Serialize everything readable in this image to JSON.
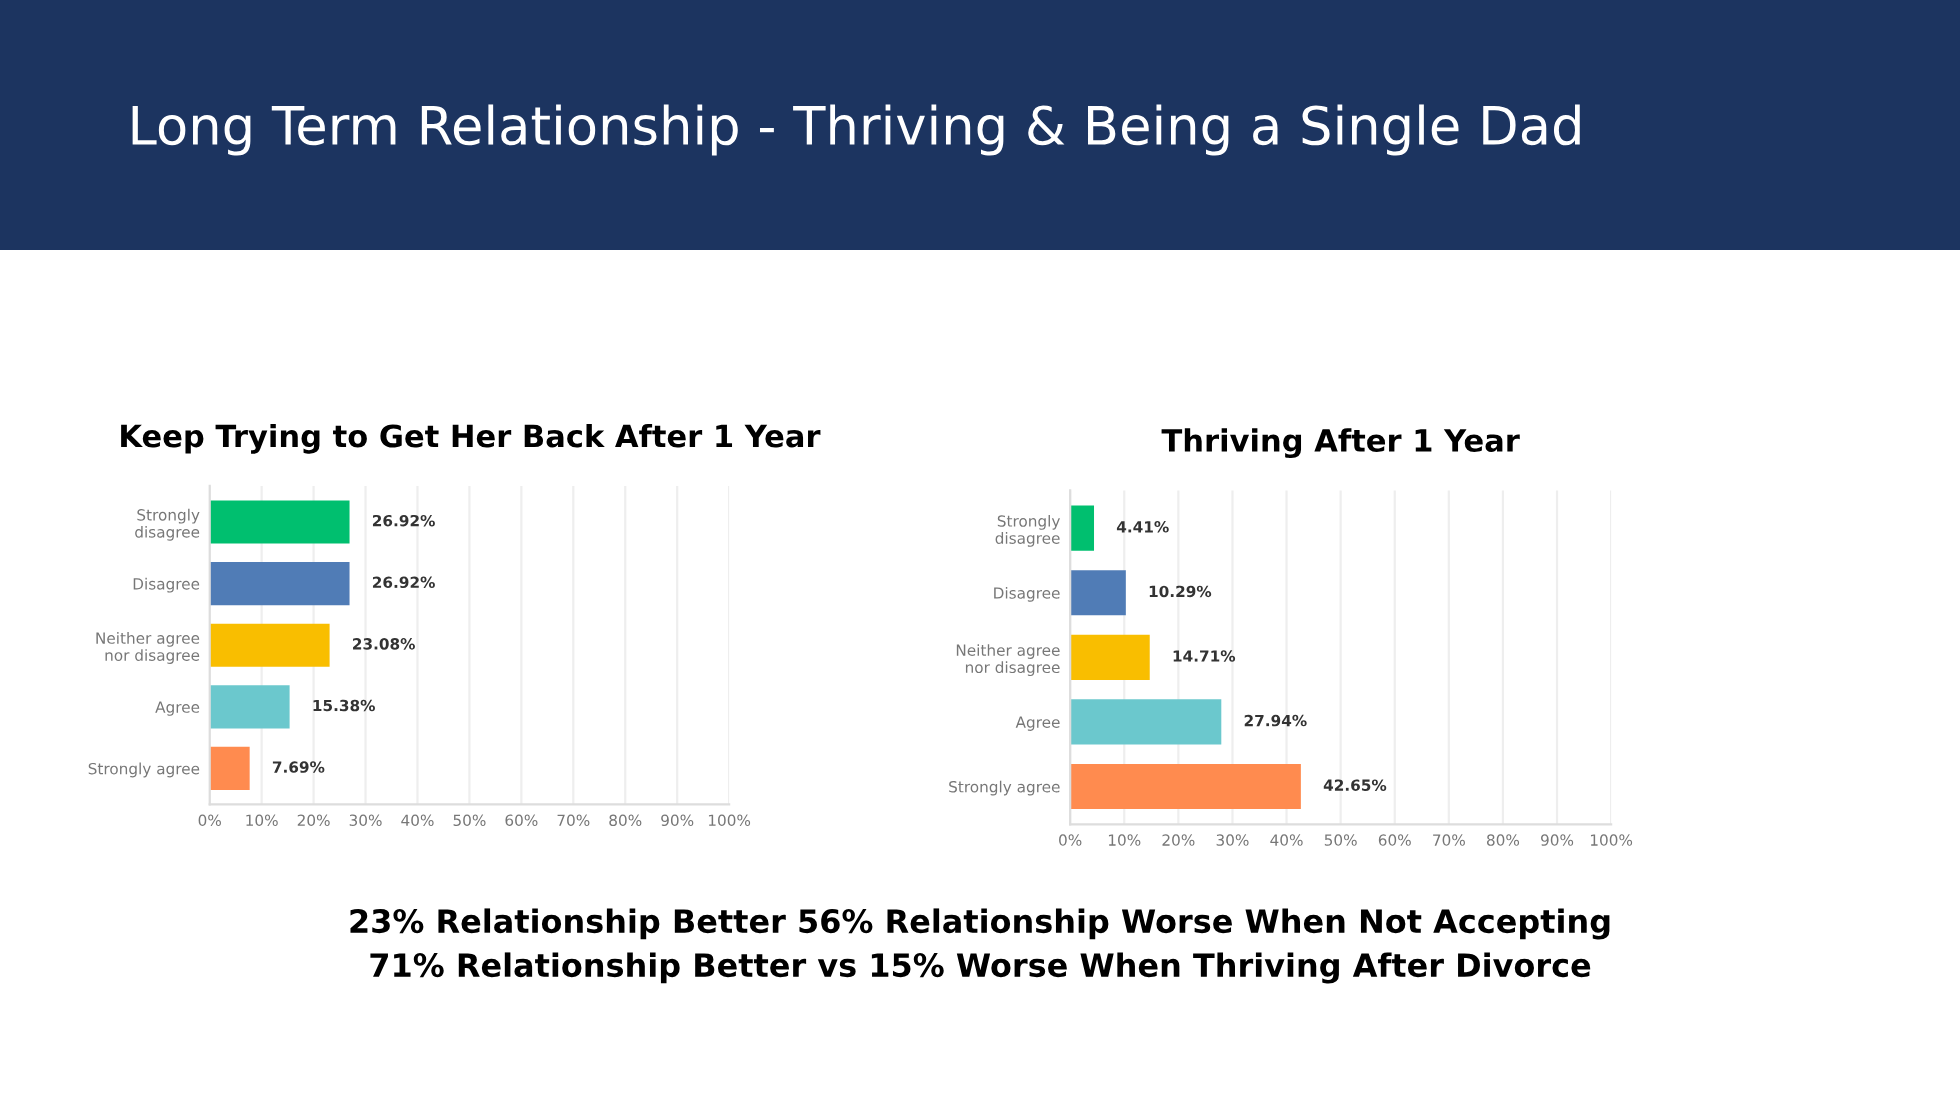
{
  "chart_data": [
    {
      "type": "other",
      "title": "Long Term Relationship - Thriving & Being a Single Dad",
      "annotations": [
        "23% Relationship Better 56% Relationship Worse When Not Accepting",
        "71% Relationship Better vs 15% Worse When Thriving After Divorce"
      ]
    },
    {
      "type": "bar",
      "orientation": "horizontal",
      "title": "Keep Trying to Get Her Back After 1 Year",
      "categories": [
        "Strongly\ndisagree",
        "Disagree",
        "Neither agree\nnor disagree",
        "Agree",
        "Strongly agree"
      ],
      "values": [
        26.92,
        26.92,
        23.08,
        15.38,
        7.69
      ],
      "value_labels": [
        "26.92%",
        "26.92%",
        "23.08%",
        "15.38%",
        "7.69%"
      ],
      "colors": [
        "#00bf6f",
        "#507cb6",
        "#f9be00",
        "#6bc8cd",
        "#ff8b4f"
      ],
      "xlim": [
        0,
        100
      ],
      "xticks": [
        {
          "value": 0,
          "label": "0%"
        },
        {
          "value": 10,
          "label": "10%"
        },
        {
          "value": 20,
          "label": "20%"
        },
        {
          "value": 30,
          "label": "30%"
        },
        {
          "value": 40,
          "label": "40%"
        },
        {
          "value": 50,
          "label": "50%"
        },
        {
          "value": 60,
          "label": "60%"
        },
        {
          "value": 70,
          "label": "70%"
        },
        {
          "value": 80,
          "label": "80%"
        },
        {
          "value": 90,
          "label": "90%"
        },
        {
          "value": 100,
          "label": "100%"
        }
      ],
      "grid": "x"
    },
    {
      "type": "bar",
      "orientation": "horizontal",
      "title": "Thriving After 1 Year",
      "categories": [
        "Strongly\ndisagree",
        "Disagree",
        "Neither agree\nnor disagree",
        "Agree",
        "Strongly agree"
      ],
      "values": [
        4.41,
        10.29,
        14.71,
        27.94,
        42.65
      ],
      "value_labels": [
        "4.41%",
        "10.29%",
        "14.71%",
        "27.94%",
        "42.65%"
      ],
      "colors": [
        "#00bf6f",
        "#507cb6",
        "#f9be00",
        "#6bc8cd",
        "#ff8b4f"
      ],
      "xlim": [
        0,
        100
      ],
      "xticks": [
        {
          "value": 0,
          "label": "0%"
        },
        {
          "value": 10,
          "label": "10%"
        },
        {
          "value": 20,
          "label": "20%"
        },
        {
          "value": 30,
          "label": "30%"
        },
        {
          "value": 40,
          "label": "40%"
        },
        {
          "value": 50,
          "label": "50%"
        },
        {
          "value": 60,
          "label": "60%"
        },
        {
          "value": 70,
          "label": "70%"
        },
        {
          "value": 80,
          "label": "80%"
        },
        {
          "value": 90,
          "label": "90%"
        },
        {
          "value": 100,
          "label": "100%"
        }
      ],
      "grid": "x"
    }
  ]
}
